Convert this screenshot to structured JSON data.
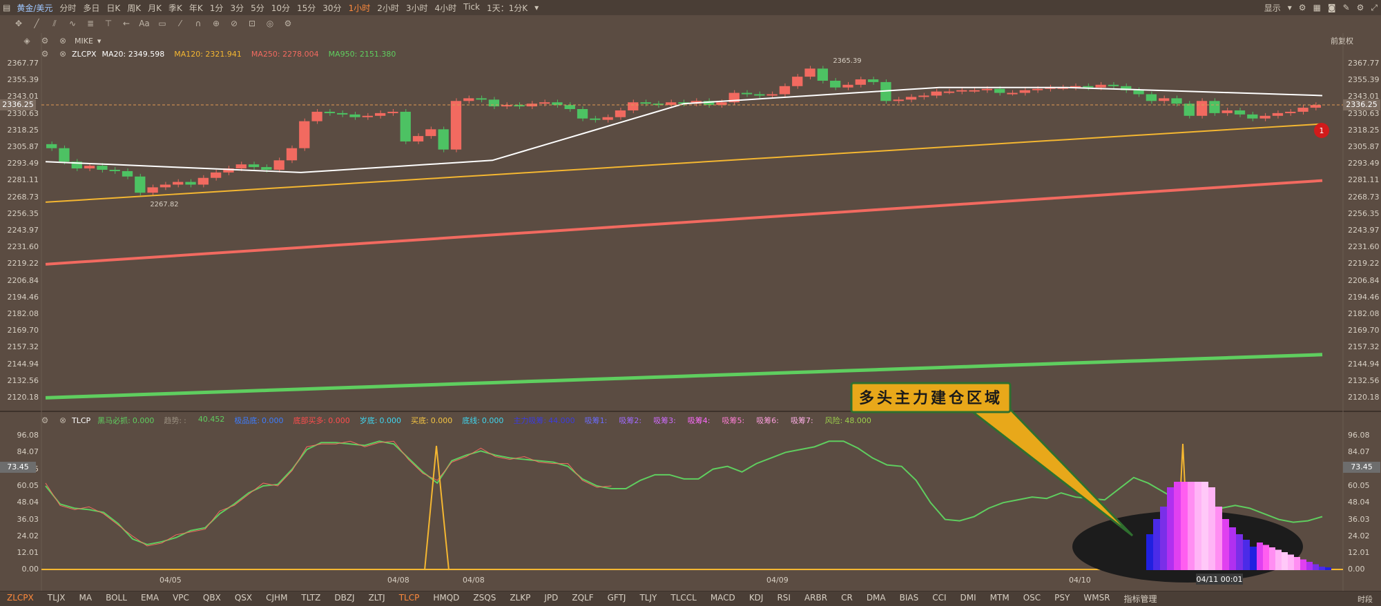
{
  "topbar": {
    "symbol": "黄金/美元",
    "periods": [
      "分时",
      "多日",
      "日K",
      "周K",
      "月K",
      "季K",
      "年K",
      "1分",
      "3分",
      "5分",
      "10分",
      "15分",
      "30分",
      "1小时",
      "2小时",
      "3小时",
      "4小时",
      "Tick",
      "1天：1分K"
    ],
    "active_period": "1小时",
    "display_label": "显示"
  },
  "mike_label": "MIKE",
  "rights_label": "前复权",
  "ma": {
    "name": "ZLCPX",
    "ma20": "MA20: 2349.598",
    "ma120": "MA120: 2321.941",
    "ma250": "MA250: 2278.004",
    "ma950": "MA950: 2151.380"
  },
  "colors": {
    "ma20": "#ffffff",
    "ma120": "#f5b731",
    "ma250": "#f26a60",
    "ma950": "#5fce5f",
    "up": "#f26a60",
    "down": "#4dc263"
  },
  "price_axis": [
    "2367.77",
    "2355.39",
    "2343.01",
    "2330.63",
    "2318.25",
    "2305.87",
    "2293.49",
    "2281.11",
    "2268.73",
    "2256.35",
    "2243.97",
    "2231.60",
    "2219.22",
    "2206.84",
    "2194.46",
    "2182.08",
    "2169.70",
    "2157.32",
    "2144.94",
    "2132.56",
    "2120.18"
  ],
  "current_price": "2336.25",
  "high_label": "2365.39",
  "low_label": "2267.82",
  "marker_number": "1",
  "indicator": {
    "name": "TLCP",
    "items": [
      {
        "label": "黑马必抓:",
        "value": "0.000",
        "color": "#5fce5f"
      },
      {
        "label": "趋势:",
        "value": ":",
        "color": "#9a8f80"
      },
      {
        "label": "",
        "value": "40.452",
        "color": "#5fce5f"
      },
      {
        "label": "极品底:",
        "value": "0.000",
        "color": "#3c7cff"
      },
      {
        "label": "底部买多:",
        "value": "0.000",
        "color": "#ff4d4d"
      },
      {
        "label": "岁底:",
        "value": "0.000",
        "color": "#3fd6f0"
      },
      {
        "label": "买底:",
        "value": "0.000",
        "color": "#f5c542"
      },
      {
        "label": "底线:",
        "value": "0.000",
        "color": "#3fd6f0"
      },
      {
        "label": "主力吸筹:",
        "value": "44.000",
        "color": "#3b3be0"
      },
      {
        "label": "吸筹1:",
        "value": "",
        "color": "#6b6bff"
      },
      {
        "label": "吸筹2:",
        "value": "",
        "color": "#a06bff"
      },
      {
        "label": "吸筹3:",
        "value": "",
        "color": "#cf6bff"
      },
      {
        "label": "吸筹4:",
        "value": "",
        "color": "#ff6bff"
      },
      {
        "label": "吸筹5:",
        "value": "",
        "color": "#ff7fd6"
      },
      {
        "label": "吸筹6:",
        "value": "",
        "color": "#ff9fdf"
      },
      {
        "label": "吸筹7:",
        "value": "",
        "color": "#ffb0e8"
      },
      {
        "label": "风险:",
        "value": "48.000",
        "color": "#9ccf4b"
      }
    ],
    "axis": [
      "96.08",
      "84.07",
      "73.45",
      "60.05",
      "48.04",
      "36.03",
      "24.02",
      "12.01",
      "0.00"
    ],
    "current_value": "73.45"
  },
  "dates": [
    "04/05",
    "04/08",
    "04/08",
    "04/09",
    "04/10"
  ],
  "crosshair_time": "04/11 00:01",
  "callout": "多头主力建仓区域",
  "bottom_tabs": [
    "ZLCPX",
    "TLJX",
    "MA",
    "BOLL",
    "EMA",
    "VPC",
    "QBX",
    "QSX",
    "CJHM",
    "TLTZ",
    "DBZJ",
    "ZLTJ",
    "TLCP",
    "HMQD",
    "ZSQS",
    "ZLKP",
    "JPD",
    "ZQLF",
    "GFTJ",
    "TLJY",
    "TLCCL",
    "MACD",
    "KDJ",
    "RSI",
    "ARBR",
    "CR",
    "DMA",
    "BIAS",
    "CCI",
    "DMI",
    "MTM",
    "OSC",
    "PSY",
    "WMSR",
    "指标管理"
  ],
  "bottom_active": [
    "ZLCPX",
    "TLCP"
  ],
  "bottom_right": "时段"
}
